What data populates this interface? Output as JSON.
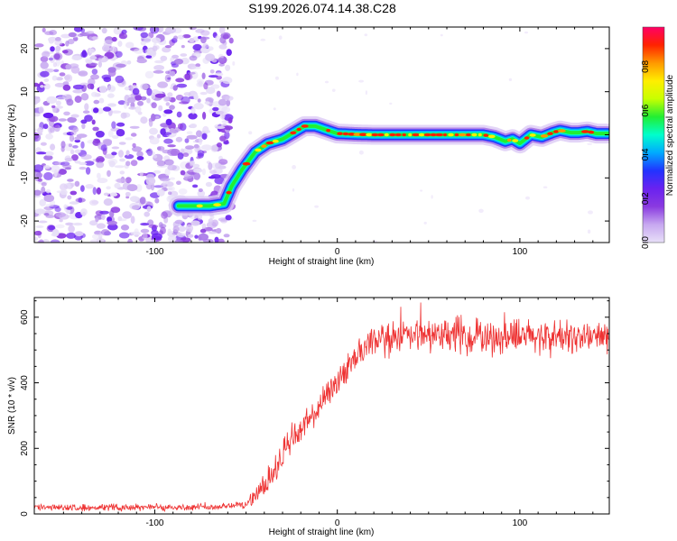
{
  "title": "S199.2026.074.14.38.C28",
  "chart_data": [
    {
      "type": "heatmap",
      "xlabel": "Height of straight line (km)",
      "ylabel": "Frequency (Hz)",
      "xlim": [
        -166,
        149
      ],
      "ylim": [
        -25,
        25
      ],
      "xticks": [
        -100,
        0,
        100
      ],
      "yticks": [
        -20,
        -10,
        0,
        10,
        20
      ],
      "ridge": {
        "x": [
          -87,
          -70,
          -62,
          -58,
          -52,
          -45,
          -38,
          -30,
          -24,
          -18,
          -12,
          -5,
          0,
          5,
          10,
          20,
          40,
          60,
          80,
          86,
          92,
          96,
          100,
          106,
          112,
          118,
          122,
          128,
          132,
          137,
          142,
          148
        ],
        "y": [
          -16.5,
          -16.5,
          -16,
          -12,
          -8,
          -4,
          -2,
          -1,
          0.5,
          2,
          2,
          1,
          0.3,
          0.2,
          0.1,
          0,
          0,
          0,
          0,
          -0.5,
          -1.5,
          -1,
          -2,
          0,
          -0.5,
          0.5,
          1,
          0.5,
          0.5,
          0.8,
          0.3,
          0.3
        ]
      },
      "colorbar": {
        "label": "Normalized spectral amplitude",
        "range": [
          0,
          1
        ],
        "ticks": [
          "0.0",
          "0.2",
          "0.4",
          "0.6",
          "0.8"
        ],
        "colors": [
          "#e8e0f8",
          "#c7a8f0",
          "#8a3ae0",
          "#6a22f0",
          "#2233ff",
          "#00aaff",
          "#00ffcc",
          "#22ee33",
          "#c8ff00",
          "#ffee00",
          "#ff9900",
          "#ff2200",
          "#ff0066"
        ]
      }
    },
    {
      "type": "line",
      "xlabel": "Height of straight line (km)",
      "ylabel": "SNR (10 * v/v)",
      "xlim": [
        -166,
        149
      ],
      "ylim": [
        0,
        660
      ],
      "xticks": [
        -100,
        0,
        100
      ],
      "yticks": [
        0,
        200,
        400,
        600
      ],
      "color": "#ee3333",
      "trend": {
        "x": [
          -166,
          -70,
          -50,
          -40,
          -30,
          -20,
          -10,
          0,
          10,
          20,
          30,
          60,
          100,
          149
        ],
        "y": [
          20,
          20,
          30,
          80,
          180,
          260,
          320,
          400,
          480,
          520,
          540,
          545,
          540,
          540
        ]
      },
      "noise_amplitude": {
        "x": [
          -166,
          -50,
          -40,
          -30,
          -20,
          0,
          30,
          149
        ],
        "y": [
          20,
          25,
          80,
          110,
          100,
          80,
          110,
          110
        ]
      }
    }
  ]
}
